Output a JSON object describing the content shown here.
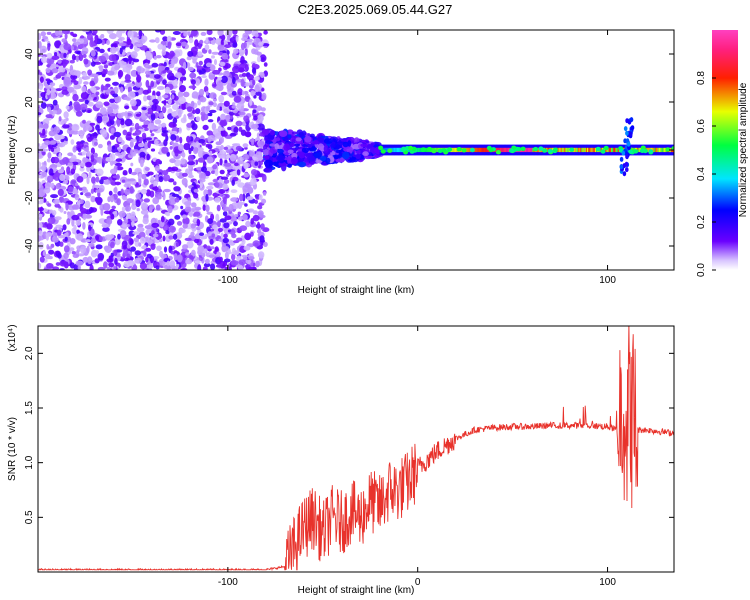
{
  "title": "C2E3.2025.069.05.44.G27",
  "colors": {
    "noise_purple": "#7a2cff",
    "snr_line": "#e8322b",
    "frame": "#000000"
  },
  "chart_data": [
    {
      "type": "heatmap",
      "xlabel": "Height of straight line (km)",
      "ylabel": "Frequency (Hz)",
      "xlim": [
        -200,
        135
      ],
      "ylim": [
        -50,
        50
      ],
      "x_ticks": [
        -100,
        0,
        100
      ],
      "x_tick_labels": [
        "-100",
        "",
        "100"
      ],
      "y_ticks": [
        -40,
        -20,
        0,
        20,
        40
      ],
      "y_tick_labels": [
        "-40",
        "-20",
        "0",
        "20",
        "40"
      ],
      "grid": false,
      "colorbar": {
        "label": "Normalized spectral amplitude",
        "range": [
          0,
          1
        ],
        "ticks": [
          0.0,
          0.2,
          0.4,
          0.6,
          0.8
        ],
        "tick_labels": [
          "0.0",
          "0.2",
          "0.4",
          "0.6",
          "0.8"
        ],
        "colormap": "rainbow (purple-blue-cyan-green-yellow-red-pink)"
      },
      "regions": [
        {
          "description": "Incoherent noise",
          "x_range": [
            -200,
            -80
          ],
          "freq_range": [
            -50,
            50
          ],
          "amplitude": [
            0.0,
            0.1
          ]
        },
        {
          "description": "Noisy signal onset",
          "x_range": [
            -80,
            -20
          ],
          "freq_center": 0,
          "freq_spread": [
            -10,
            7
          ],
          "amplitude": [
            0.1,
            0.4
          ]
        },
        {
          "description": "Coherent signal",
          "x_range": [
            -20,
            135
          ],
          "freq_center": 0,
          "freq_spread": [
            -2,
            2
          ],
          "amplitude": [
            0.3,
            0.95
          ]
        },
        {
          "description": "Disturbance",
          "x": 110,
          "freq_range": [
            -12,
            14
          ],
          "amplitude": [
            0.1,
            0.4
          ]
        }
      ]
    },
    {
      "type": "line",
      "xlabel": "Height of straight line (km)",
      "ylabel": "SNR (10 * v/v)",
      "y_multiplier": "(x10⁴)",
      "xlim": [
        -200,
        135
      ],
      "ylim": [
        0,
        2.25
      ],
      "x_ticks": [
        -100,
        0,
        100
      ],
      "x_tick_labels": [
        "-100",
        "0",
        "100"
      ],
      "y_ticks": [
        0.5,
        1.0,
        1.5,
        2.0
      ],
      "y_tick_labels": [
        "0.5",
        "1.0",
        "1.5",
        "2.0"
      ],
      "grid": false,
      "series": [
        {
          "x": [
            -200,
            -150,
            -100,
            -80,
            -70,
            -60,
            -55,
            -50,
            -45,
            -40,
            -35,
            -30,
            -25,
            -20,
            -15,
            -10,
            -5,
            0,
            10,
            20,
            30,
            40,
            50,
            60,
            70,
            80,
            90,
            100,
            105,
            108,
            110,
            112,
            115,
            120,
            135
          ],
          "y": [
            0.02,
            0.02,
            0.02,
            0.02,
            0.05,
            0.4,
            0.5,
            0.35,
            0.5,
            0.45,
            0.55,
            0.5,
            0.65,
            0.6,
            0.75,
            0.75,
            0.82,
            0.95,
            1.1,
            1.22,
            1.3,
            1.32,
            1.33,
            1.33,
            1.34,
            1.34,
            1.34,
            1.33,
            1.3,
            1.6,
            1.4,
            1.5,
            1.3,
            1.3,
            1.27
          ]
        }
      ]
    }
  ]
}
